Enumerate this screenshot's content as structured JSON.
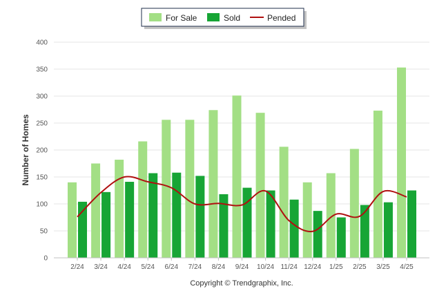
{
  "chart_data": {
    "type": "bar",
    "ylabel": "Number of Homes",
    "ylim": [
      0,
      400
    ],
    "yticks": [
      0,
      50,
      100,
      150,
      200,
      250,
      300,
      350,
      400
    ],
    "categories": [
      "2/24",
      "3/24",
      "4/24",
      "5/24",
      "6/24",
      "7/24",
      "8/24",
      "9/24",
      "10/24",
      "11/24",
      "12/24",
      "1/25",
      "2/25",
      "3/25",
      "4/25"
    ],
    "series": [
      {
        "name": "For Sale",
        "type": "bar",
        "color": "#a3df85",
        "values": [
          140,
          175,
          182,
          216,
          256,
          256,
          274,
          301,
          269,
          206,
          140,
          157,
          202,
          273,
          353
        ]
      },
      {
        "name": "Sold",
        "type": "bar",
        "color": "#17a535",
        "values": [
          104,
          122,
          141,
          157,
          158,
          152,
          118,
          130,
          125,
          108,
          87,
          75,
          98,
          103,
          125
        ]
      },
      {
        "name": "Pended",
        "type": "line",
        "color": "#b01010",
        "values": [
          76,
          121,
          150,
          141,
          130,
          100,
          101,
          98,
          124,
          69,
          49,
          81,
          77,
          123,
          113
        ]
      }
    ],
    "grid": true,
    "legend_position": "top-center",
    "credit": "Copyright © Trendgraphix, Inc."
  }
}
